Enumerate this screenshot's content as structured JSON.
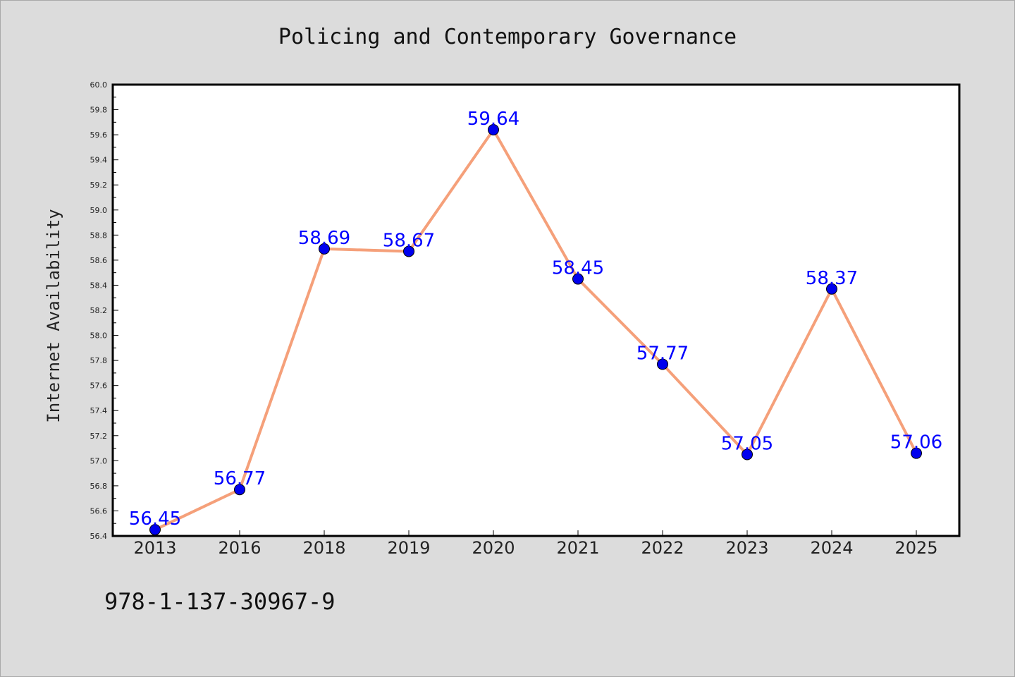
{
  "chart_data": {
    "type": "line",
    "title": "Policing and Contemporary Governance",
    "xlabel": "",
    "ylabel": "Internet Availability",
    "categories": [
      "2013",
      "2016",
      "2018",
      "2019",
      "2020",
      "2021",
      "2022",
      "2023",
      "2024",
      "2025"
    ],
    "series": [
      {
        "values": [
          56.45,
          56.77,
          58.69,
          58.67,
          59.64,
          58.45,
          57.77,
          57.05,
          58.37,
          57.06
        ],
        "labels": [
          "56.45",
          "56.77",
          "58.69",
          "58.67",
          "59.64",
          "58.45",
          "57.77",
          "57.05",
          "58.37",
          "57.06"
        ]
      }
    ],
    "ylim": [
      56.4,
      60.0
    ],
    "yticks": [
      "56.4",
      "56.6",
      "56.8",
      "57.0",
      "57.2",
      "57.4",
      "57.6",
      "57.8",
      "58.0",
      "58.2",
      "58.4",
      "58.6",
      "58.8",
      "59.0",
      "59.2",
      "59.4",
      "59.6",
      "59.8",
      "60.0"
    ],
    "grid": false,
    "colors": {
      "line": "#f5a07a",
      "marker": "#0000ee",
      "label": "#0000ff",
      "background": "#dcdcdc",
      "plot_background": "#ffffff"
    }
  },
  "footer": {
    "isbn": "978-1-137-30967-9"
  }
}
